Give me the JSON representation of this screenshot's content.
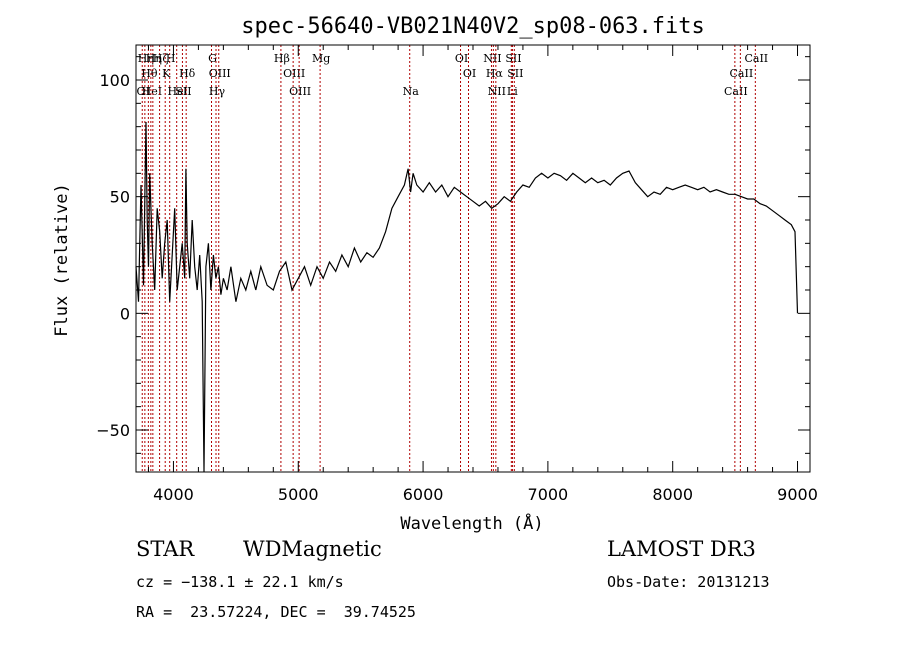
{
  "chart_data": {
    "type": "line",
    "title": "spec-56640-VB021N40V2_sp08-063.fits",
    "xlabel": "Wavelength (Å)",
    "ylabel": "Flux (relative)",
    "xlim": [
      3700,
      9100
    ],
    "ylim": [
      -68,
      115
    ],
    "xticks": [
      4000,
      5000,
      6000,
      7000,
      8000,
      9000
    ],
    "yticks": [
      -50,
      0,
      50,
      100
    ],
    "line_color": "#000000",
    "marker_color": "#b00000",
    "grid": false,
    "series": [
      {
        "values": [
          [
            3700,
            20
          ],
          [
            3720,
            5
          ],
          [
            3740,
            55
          ],
          [
            3760,
            12
          ],
          [
            3780,
            82
          ],
          [
            3790,
            40
          ],
          [
            3800,
            20
          ],
          [
            3810,
            60
          ],
          [
            3830,
            30
          ],
          [
            3850,
            10
          ],
          [
            3870,
            45
          ],
          [
            3890,
            35
          ],
          [
            3910,
            15
          ],
          [
            3930,
            30
          ],
          [
            3950,
            40
          ],
          [
            3970,
            5
          ],
          [
            3990,
            25
          ],
          [
            4010,
            45
          ],
          [
            4030,
            10
          ],
          [
            4050,
            20
          ],
          [
            4070,
            30
          ],
          [
            4090,
            15
          ],
          [
            4100,
            62
          ],
          [
            4110,
            30
          ],
          [
            4130,
            15
          ],
          [
            4150,
            40
          ],
          [
            4170,
            20
          ],
          [
            4190,
            10
          ],
          [
            4210,
            25
          ],
          [
            4230,
            5
          ],
          [
            4245,
            -68
          ],
          [
            4260,
            20
          ],
          [
            4280,
            30
          ],
          [
            4300,
            10
          ],
          [
            4320,
            25
          ],
          [
            4340,
            15
          ],
          [
            4360,
            20
          ],
          [
            4380,
            8
          ],
          [
            4400,
            15
          ],
          [
            4430,
            10
          ],
          [
            4460,
            20
          ],
          [
            4500,
            5
          ],
          [
            4540,
            15
          ],
          [
            4580,
            10
          ],
          [
            4620,
            18
          ],
          [
            4660,
            10
          ],
          [
            4700,
            20
          ],
          [
            4750,
            12
          ],
          [
            4800,
            10
          ],
          [
            4850,
            18
          ],
          [
            4900,
            22
          ],
          [
            4950,
            10
          ],
          [
            5000,
            15
          ],
          [
            5050,
            20
          ],
          [
            5100,
            12
          ],
          [
            5150,
            20
          ],
          [
            5200,
            15
          ],
          [
            5250,
            22
          ],
          [
            5300,
            18
          ],
          [
            5350,
            25
          ],
          [
            5400,
            20
          ],
          [
            5450,
            28
          ],
          [
            5500,
            22
          ],
          [
            5550,
            26
          ],
          [
            5600,
            24
          ],
          [
            5650,
            28
          ],
          [
            5700,
            35
          ],
          [
            5750,
            45
          ],
          [
            5800,
            50
          ],
          [
            5850,
            55
          ],
          [
            5880,
            62
          ],
          [
            5900,
            52
          ],
          [
            5920,
            60
          ],
          [
            5950,
            55
          ],
          [
            6000,
            52
          ],
          [
            6050,
            56
          ],
          [
            6100,
            52
          ],
          [
            6150,
            55
          ],
          [
            6200,
            50
          ],
          [
            6250,
            54
          ],
          [
            6300,
            52
          ],
          [
            6350,
            50
          ],
          [
            6400,
            48
          ],
          [
            6450,
            46
          ],
          [
            6500,
            48
          ],
          [
            6550,
            45
          ],
          [
            6600,
            47
          ],
          [
            6650,
            50
          ],
          [
            6700,
            48
          ],
          [
            6750,
            52
          ],
          [
            6800,
            55
          ],
          [
            6850,
            54
          ],
          [
            6900,
            58
          ],
          [
            6950,
            60
          ],
          [
            7000,
            58
          ],
          [
            7050,
            60
          ],
          [
            7100,
            59
          ],
          [
            7150,
            57
          ],
          [
            7200,
            60
          ],
          [
            7250,
            58
          ],
          [
            7300,
            56
          ],
          [
            7350,
            58
          ],
          [
            7400,
            56
          ],
          [
            7450,
            57
          ],
          [
            7500,
            55
          ],
          [
            7550,
            58
          ],
          [
            7600,
            60
          ],
          [
            7650,
            61
          ],
          [
            7700,
            56
          ],
          [
            7750,
            53
          ],
          [
            7800,
            50
          ],
          [
            7850,
            52
          ],
          [
            7900,
            51
          ],
          [
            7950,
            54
          ],
          [
            8000,
            53
          ],
          [
            8050,
            54
          ],
          [
            8100,
            55
          ],
          [
            8150,
            54
          ],
          [
            8200,
            53
          ],
          [
            8250,
            54
          ],
          [
            8300,
            52
          ],
          [
            8350,
            53
          ],
          [
            8400,
            52
          ],
          [
            8450,
            51
          ],
          [
            8500,
            51
          ],
          [
            8550,
            50
          ],
          [
            8600,
            49
          ],
          [
            8650,
            49
          ],
          [
            8700,
            47
          ],
          [
            8750,
            46
          ],
          [
            8800,
            44
          ],
          [
            8850,
            42
          ],
          [
            8900,
            40
          ],
          [
            8950,
            38
          ],
          [
            8980,
            35
          ],
          [
            9000,
            0
          ]
        ]
      }
    ],
    "line_markers": [
      {
        "wavelength": 3750,
        "label": "OI",
        "row": 3
      },
      {
        "wavelength": 3771,
        "label": "Hη",
        "row": 1
      },
      {
        "wavelength": 3799,
        "label": "Hθ",
        "row": 2
      },
      {
        "wavelength": 3819,
        "label": "HeI",
        "row": 3
      },
      {
        "wavelength": 3835,
        "label": "Hη",
        "row": 1
      },
      {
        "wavelength": 3889,
        "label": "Hζ",
        "row": 1
      },
      {
        "wavelength": 3934,
        "label": "K",
        "row": 2
      },
      {
        "wavelength": 3970,
        "label": "H",
        "row": 1
      },
      {
        "wavelength": 4026,
        "label": "HeI",
        "row": 3
      },
      {
        "wavelength": 4072,
        "label": "SII",
        "row": 3
      },
      {
        "wavelength": 4102,
        "label": "Hδ",
        "row": 2
      },
      {
        "wavelength": 4305,
        "label": "G",
        "row": 1
      },
      {
        "wavelength": 4341,
        "label": "Hγ",
        "row": 3
      },
      {
        "wavelength": 4363,
        "label": "OIII",
        "row": 2
      },
      {
        "wavelength": 4861,
        "label": "Hβ",
        "row": 1
      },
      {
        "wavelength": 4959,
        "label": "OIII",
        "row": 2
      },
      {
        "wavelength": 5007,
        "label": "OIII",
        "row": 3
      },
      {
        "wavelength": 5175,
        "label": "Mg",
        "row": 1
      },
      {
        "wavelength": 5893,
        "label": "Na",
        "row": 3
      },
      {
        "wavelength": 6300,
        "label": "OI",
        "row": 1
      },
      {
        "wavelength": 6364,
        "label": "OI",
        "row": 2
      },
      {
        "wavelength": 6548,
        "label": "NII",
        "row": 1
      },
      {
        "wavelength": 6563,
        "label": "Hα",
        "row": 2
      },
      {
        "wavelength": 6583,
        "label": "NII",
        "row": 3
      },
      {
        "wavelength": 6707,
        "label": "Li",
        "row": 3
      },
      {
        "wavelength": 6716,
        "label": "SII",
        "row": 1
      },
      {
        "wavelength": 6731,
        "label": "SII",
        "row": 2
      },
      {
        "wavelength": 8498,
        "label": "CaII",
        "row": 3
      },
      {
        "wavelength": 8542,
        "label": "CaII",
        "row": 2
      },
      {
        "wavelength": 8662,
        "label": "CaII",
        "row": 1
      }
    ]
  },
  "info": {
    "class": "STAR",
    "subclass": "WDMagnetic",
    "survey": "LAMOST DR3",
    "cz": "cz = −138.1 ± 22.1 km/s",
    "obs_date": "Obs-Date: 20131213",
    "coords": "RA =  23.57224, DEC =  39.74525"
  }
}
